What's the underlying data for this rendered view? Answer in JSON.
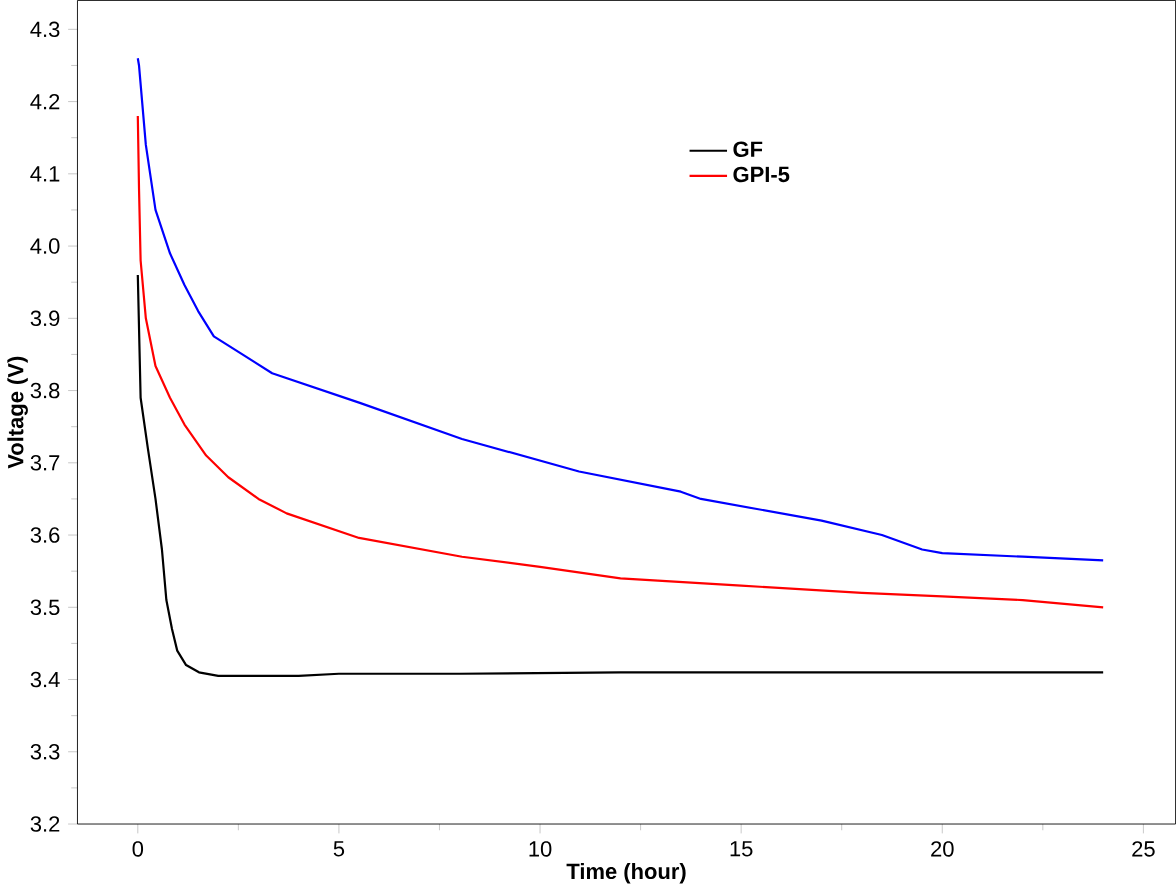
{
  "chart_data": {
    "type": "line",
    "xlabel": "Time (hour)",
    "ylabel": "Voltage (V)",
    "xlim": [
      -1.5,
      25.8
    ],
    "ylim": [
      3.2,
      4.34
    ],
    "xticks": [
      0,
      5,
      10,
      15,
      20,
      25
    ],
    "yticks": [
      3.2,
      3.3,
      3.4,
      3.5,
      3.6,
      3.7,
      3.8,
      3.9,
      {
        "value": 4.0,
        "label": "4.0"
      },
      4.1,
      4.2,
      4.3
    ],
    "legend": "top right",
    "grid": false,
    "series": [
      {
        "name": "GF",
        "color": "#000000",
        "x": [
          0,
          0.07,
          0.25,
          0.44,
          0.6,
          0.71,
          0.85,
          0.98,
          1.2,
          1.52,
          2,
          3,
          4,
          5,
          8,
          12,
          16,
          20,
          24
        ],
        "values": [
          3.96,
          3.79,
          3.72,
          3.65,
          3.58,
          3.51,
          3.47,
          3.44,
          3.42,
          3.41,
          3.405,
          3.405,
          3.405,
          3.408,
          3.408,
          3.41,
          3.41,
          3.41,
          3.41
        ]
      },
      {
        "name": "GPI-5",
        "color": "#ff0000",
        "x": [
          0,
          0.03,
          0.07,
          0.2,
          0.44,
          0.8,
          1.16,
          1.7,
          2.25,
          3,
          3.7,
          5.5,
          8.06,
          10,
          12,
          15,
          18,
          20,
          22,
          24
        ],
        "values": [
          4.18,
          4.08,
          3.98,
          3.9,
          3.834,
          3.79,
          3.753,
          3.71,
          3.68,
          3.65,
          3.63,
          3.596,
          3.57,
          3.556,
          3.54,
          3.53,
          3.52,
          3.515,
          3.51,
          3.5
        ]
      },
      {
        "color": "#0000ff",
        "x": [
          0,
          0.03,
          0.2,
          0.44,
          0.8,
          1.16,
          1.5,
          1.89,
          2.6,
          3.34,
          5.52,
          8.06,
          10.97,
          13.5,
          14,
          15,
          17,
          18.5,
          19.5,
          20,
          22,
          24
        ],
        "values": [
          4.26,
          4.25,
          4.14,
          4.05,
          3.99,
          3.946,
          3.91,
          3.875,
          3.85,
          3.824,
          3.783,
          3.733,
          3.688,
          3.66,
          3.65,
          3.64,
          3.62,
          3.6,
          3.58,
          3.575,
          3.57,
          3.565
        ]
      }
    ]
  }
}
